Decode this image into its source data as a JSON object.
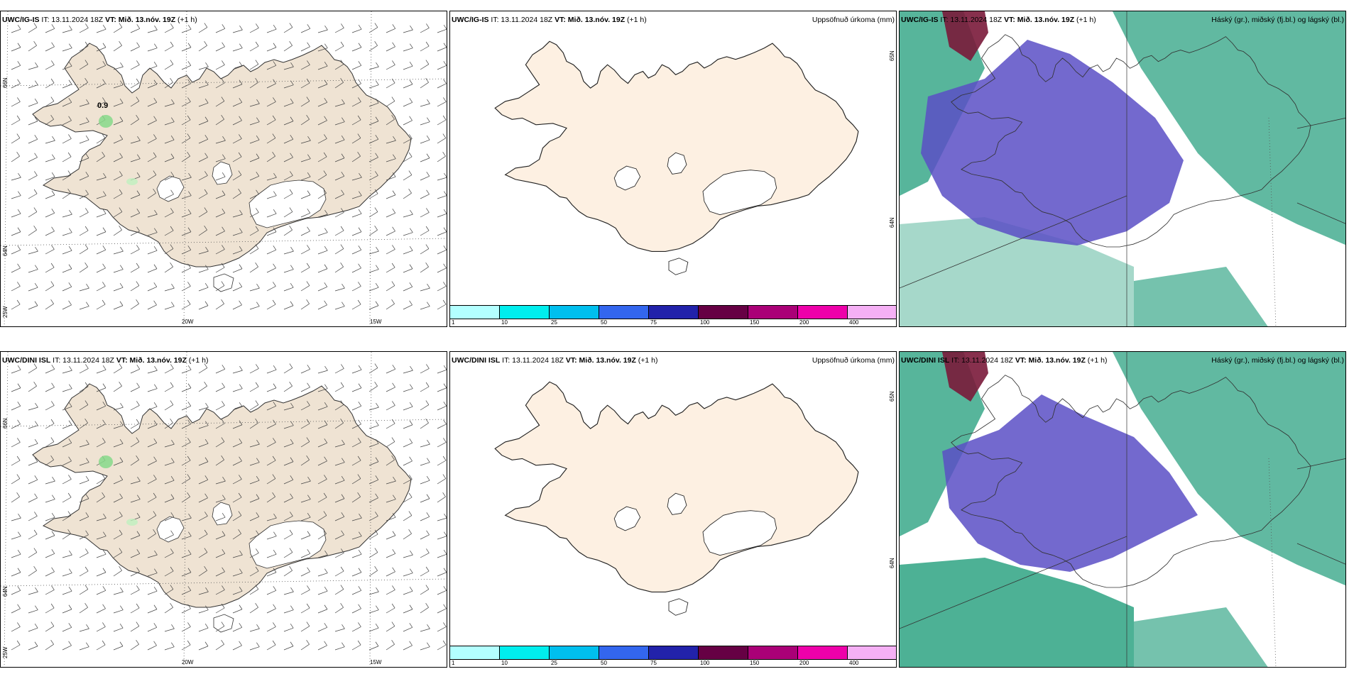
{
  "panels": [
    {
      "id": "top-left",
      "model": "UWC/IG-IS",
      "it_label": "IT:",
      "it_value": "13.11.2024 18Z",
      "vt_label": "VT:",
      "vt_value": "Mið. 13.nóv. 19Z",
      "lead": "(+1 h)",
      "right_title": "",
      "map_kind": "wind",
      "annotation": "0.9",
      "lon_labels": [
        "20W",
        "15W"
      ],
      "lat_labels": [
        "66N",
        "64N",
        "25W"
      ],
      "right_lat_labels": []
    },
    {
      "id": "top-middle",
      "model": "UWC/IG-IS",
      "it_label": "IT:",
      "it_value": "13.11.2024 18Z",
      "vt_label": "VT:",
      "vt_value": "Mið. 13.nóv. 19Z",
      "lead": "(+1 h)",
      "right_title": "Uppsöfnuð úrkoma (mm)",
      "map_kind": "precip",
      "right_lat_labels": [
        "65N",
        "64N"
      ]
    },
    {
      "id": "top-right",
      "model": "UWC/IG-IS",
      "it_label": "IT:",
      "it_value": "13.11.2024 18Z",
      "vt_label": "VT:",
      "vt_value": "Mið. 13.nóv. 19Z",
      "lead": "(+1 h)",
      "right_title": "Háský (gr.), miðský (fj.bl.) og lágský (bl.)",
      "map_kind": "cloud"
    },
    {
      "id": "bottom-left",
      "model": "UWC/DINI ISL",
      "it_label": "IT:",
      "it_value": "13.11.2024 18Z",
      "vt_label": "VT:",
      "vt_value": "Mið. 13.nóv. 19Z",
      "lead": "(+1 h)",
      "right_title": "",
      "map_kind": "wind",
      "annotation": "",
      "lon_labels": [
        "20W",
        "15W"
      ],
      "lat_labels": [
        "66N",
        "64N",
        "25W"
      ],
      "right_lat_labels": []
    },
    {
      "id": "bottom-middle",
      "model": "UWC/DINI ISL",
      "it_label": "IT:",
      "it_value": "13.11.2024 18Z",
      "vt_label": "VT:",
      "vt_value": "Mið. 13.nóv. 19Z",
      "lead": "(+1 h)",
      "right_title": "Uppsöfnuð úrkoma (mm)",
      "map_kind": "precip",
      "right_lat_labels": [
        "65N",
        "64N"
      ]
    },
    {
      "id": "bottom-right",
      "model": "UWC/DINI ISL",
      "it_label": "IT:",
      "it_value": "13.11.2024 18Z",
      "vt_label": "VT:",
      "vt_value": "Mið. 13.nóv. 19Z",
      "lead": "(+1 h)",
      "right_title": "Háský (gr.), miðský (fj.bl.) og lágský (bl.)",
      "map_kind": "cloud"
    }
  ],
  "precip_colorbar": {
    "ticks": [
      "1",
      "10",
      "25",
      "50",
      "75",
      "100",
      "150",
      "200",
      "400"
    ],
    "colors": [
      "#b3ffff",
      "#00eeee",
      "#00bfee",
      "#3366ee",
      "#2222aa",
      "#660044",
      "#aa0077",
      "#ee00aa",
      "#f5b0f5"
    ]
  },
  "colors": {
    "land_wind": "#efe3d3",
    "land_precip": "#fdf0e2",
    "glacier": "#ffffff",
    "cloud_high": "#3aa88a",
    "cloud_mid": "#5b4fc6",
    "cloud_low": "#7a1a3a"
  }
}
